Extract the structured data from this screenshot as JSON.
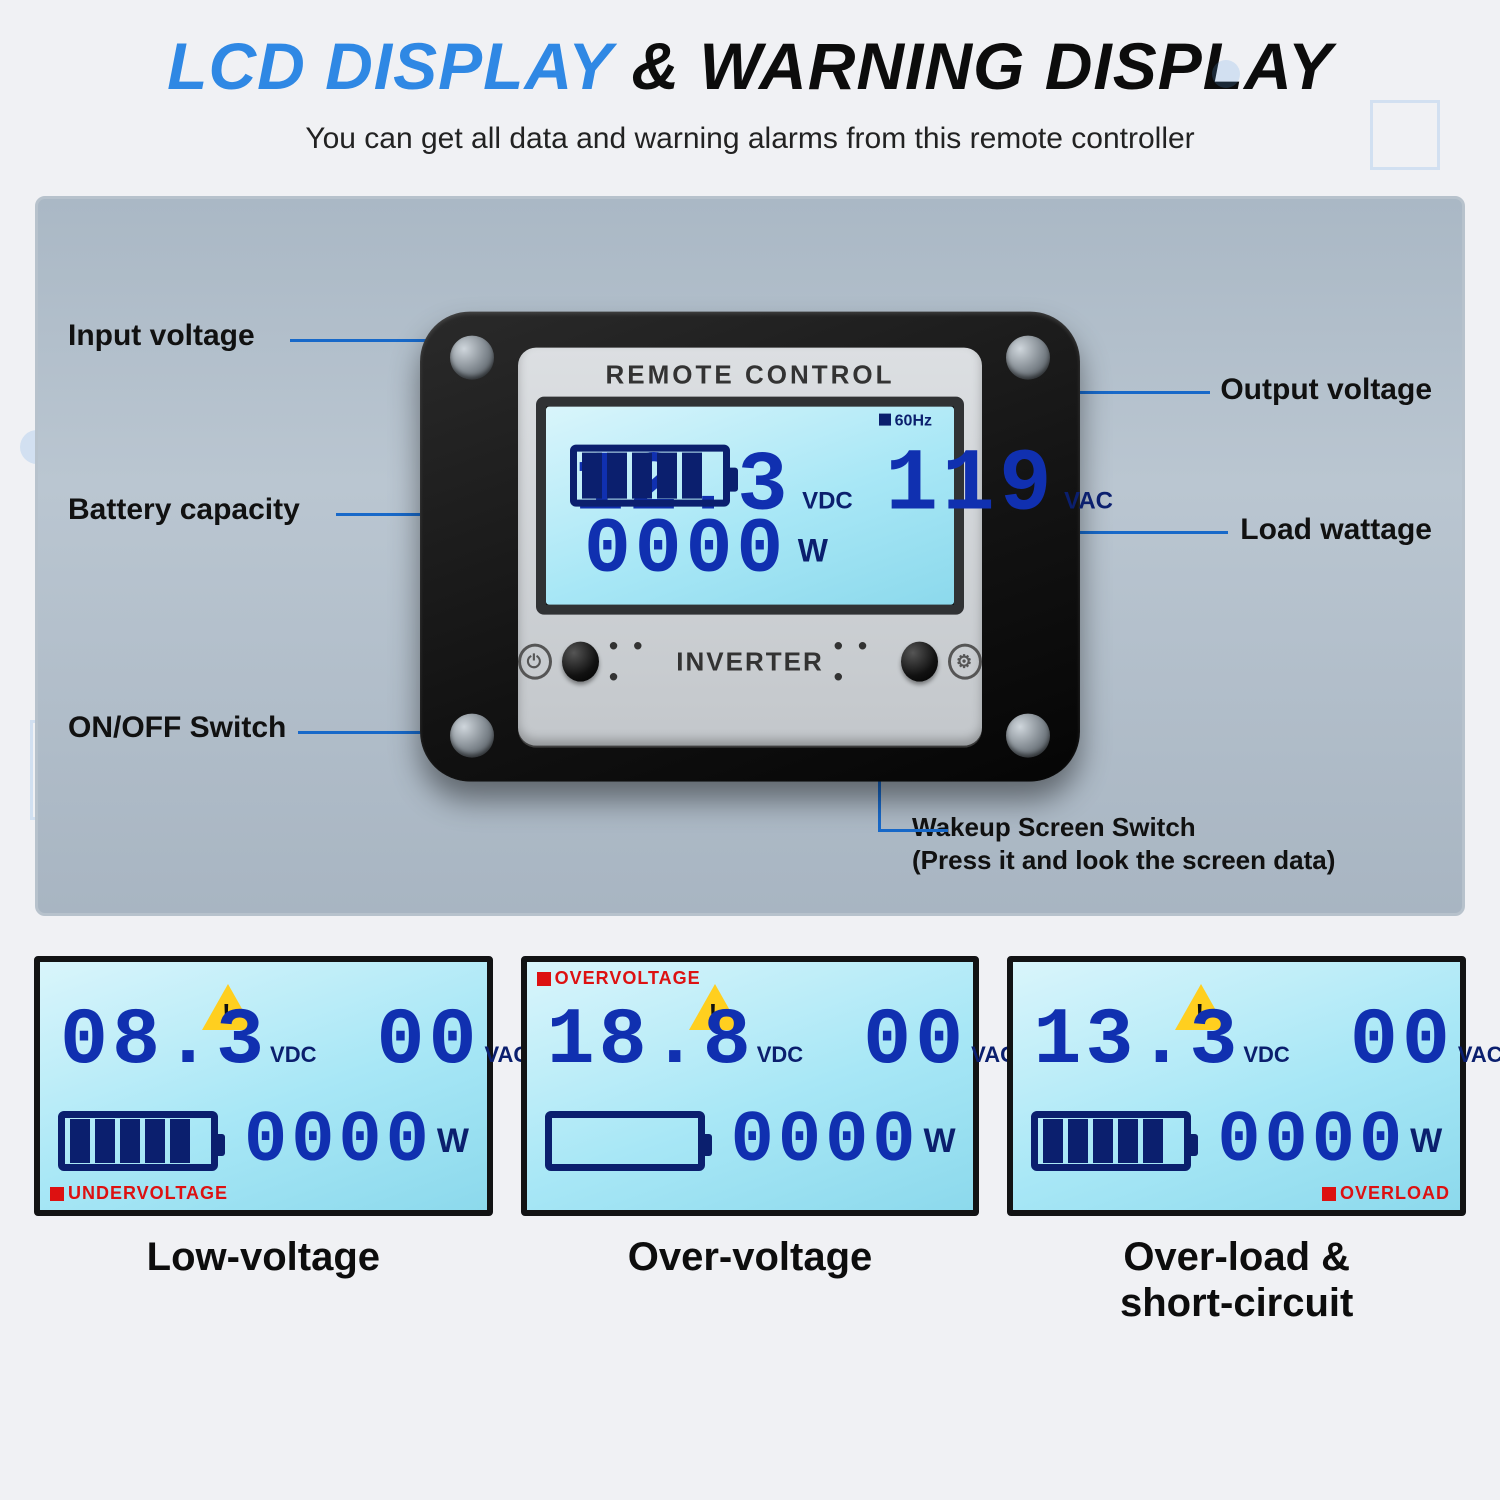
{
  "title": {
    "blue": "LCD DISPLAY",
    "amp": " & ",
    "black": "WARNING DISPLAY"
  },
  "subtitle": "You can get all data and warning alarms from this remote controller",
  "device": {
    "top_label": "REMOTE CONTROL",
    "bottom_label": "INVERTER",
    "freq_tag": "60Hz",
    "vdc": "12.3",
    "vdc_unit": "VDC",
    "vac": "119",
    "vac_unit": "VAC",
    "watt": "0000",
    "watt_unit": "W",
    "battery_bars": 5
  },
  "callouts": {
    "input_voltage": "Input voltage",
    "battery_capacity": "Battery capacity",
    "onoff": "ON/OFF Switch",
    "output_voltage": "Output voltage",
    "load_wattage": "Load wattage",
    "wakeup_line1": "Wakeup Screen Switch",
    "wakeup_line2": "(Press it and look the screen data)"
  },
  "warnings": [
    {
      "label": "Low-voltage",
      "vdc": "08.3",
      "vac": "00",
      "watt": "0000",
      "battery_bars": 5,
      "flag_text": "UNDERVOLTAGE",
      "flag_pos": "bottom-left",
      "tri_pos": "after-vdc"
    },
    {
      "label": "Over-voltage",
      "vdc": "18.8",
      "vac": "00",
      "watt": "0000",
      "battery_bars": 0,
      "flag_text": "OVERVOLTAGE",
      "flag_pos": "top-left",
      "tri_pos": "after-vdc"
    },
    {
      "label": "Over-load & short-circuit",
      "vdc": "13.3",
      "vac": "00",
      "watt": "0000",
      "battery_bars": 5,
      "flag_text": "OVERLOAD",
      "flag_pos": "bottom-right",
      "tri_pos": "after-vdc"
    }
  ],
  "units": {
    "vdc": "VDC",
    "vac": "VAC",
    "watt": "W"
  },
  "colors": {
    "title_blue": "#2f88e4",
    "seg_color": "#1030b0",
    "lead_color": "#1869c9",
    "lcd_bg_from": "#d9f5fb",
    "lcd_bg_to": "#8cd9ec",
    "flag_red": "#d11",
    "warn_tri": "#ffcf1f"
  }
}
